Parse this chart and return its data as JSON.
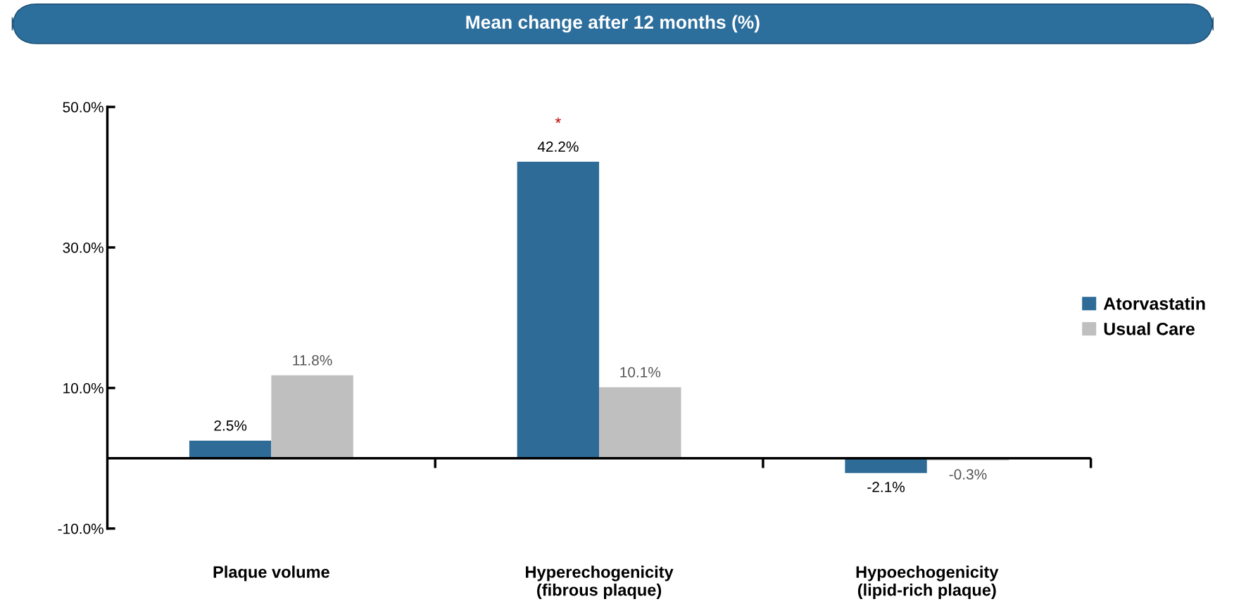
{
  "chart_data": {
    "type": "bar",
    "title": "Mean change after 12 months (%)",
    "categories": [
      "Plaque volume",
      "Hyperechogenicity\n(fibrous plaque)",
      "Hypoechogenicity\n(lipid-rich plaque)"
    ],
    "series": [
      {
        "name": "Atorvastatin",
        "color": "#2e6b96",
        "values": [
          2.5,
          42.2,
          -2.1
        ],
        "value_labels": [
          "2.5%",
          "42.2%",
          "-2.1%"
        ]
      },
      {
        "name": "Usual Care",
        "color": "#bfbfbf",
        "values": [
          11.8,
          10.1,
          -0.3
        ],
        "value_labels": [
          "11.8%",
          "10.1%",
          "-0.3%"
        ]
      }
    ],
    "ylim": [
      -10,
      50
    ],
    "yticks": [
      {
        "value": -10,
        "label": "-10.0%"
      },
      {
        "value": 10,
        "label": "10.0%"
      },
      {
        "value": 30,
        "label": "30.0%"
      },
      {
        "value": 50,
        "label": "50.0%"
      }
    ],
    "annotations": [
      "*"
    ],
    "legend": "right",
    "grid": false
  }
}
